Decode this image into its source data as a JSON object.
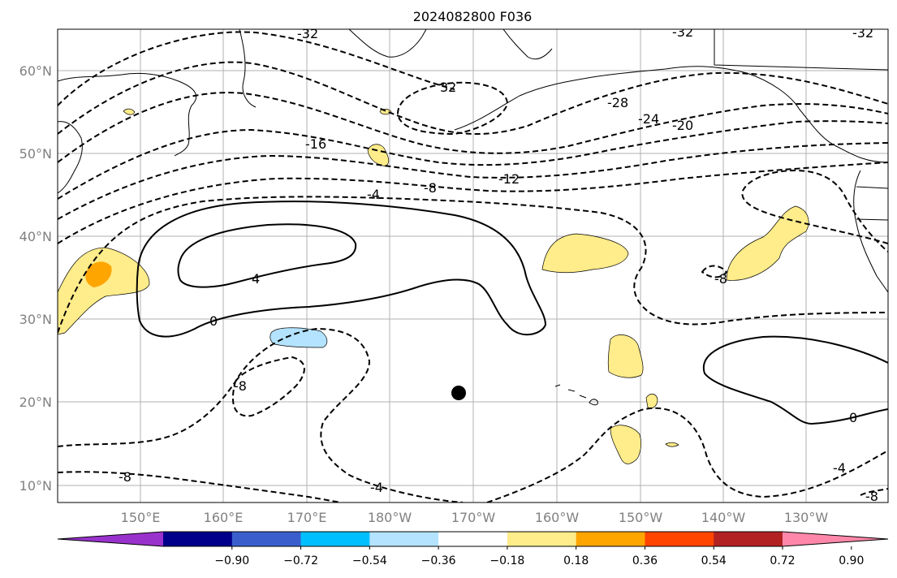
{
  "title": "2024082800 F036",
  "x_ticks": [
    "150°E",
    "160°E",
    "170°E",
    "180°W",
    "170°W",
    "160°W",
    "150°W",
    "140°W",
    "130°W"
  ],
  "y_ticks": [
    "60°N",
    "50°N",
    "40°N",
    "30°N",
    "20°N",
    "10°N"
  ],
  "colorbar": {
    "colors": [
      "#9932cc",
      "#00008b",
      "#3a5fcd",
      "#00bfff",
      "#b3e3ff",
      "#ffffff",
      "#ffec8a",
      "#ffa500",
      "#ff4500",
      "#b22222",
      "#ff88aa"
    ],
    "ticks": [
      "−0.90",
      "−0.72",
      "−0.54",
      "−0.36",
      "−0.18",
      "0.18",
      "0.36",
      "0.54",
      "0.72",
      "0.90"
    ]
  },
  "contour_labels": [
    "32",
    "-32",
    "-32",
    "-32",
    "-28",
    "-24",
    "-20",
    "-16",
    "-12",
    "-8",
    "-4",
    "4",
    "0",
    "-8",
    "-4",
    "-8",
    "0",
    "-8",
    "-4",
    "-8"
  ],
  "marker": {
    "label": "storm-center-marker",
    "lon": -172,
    "lat": 21
  }
}
